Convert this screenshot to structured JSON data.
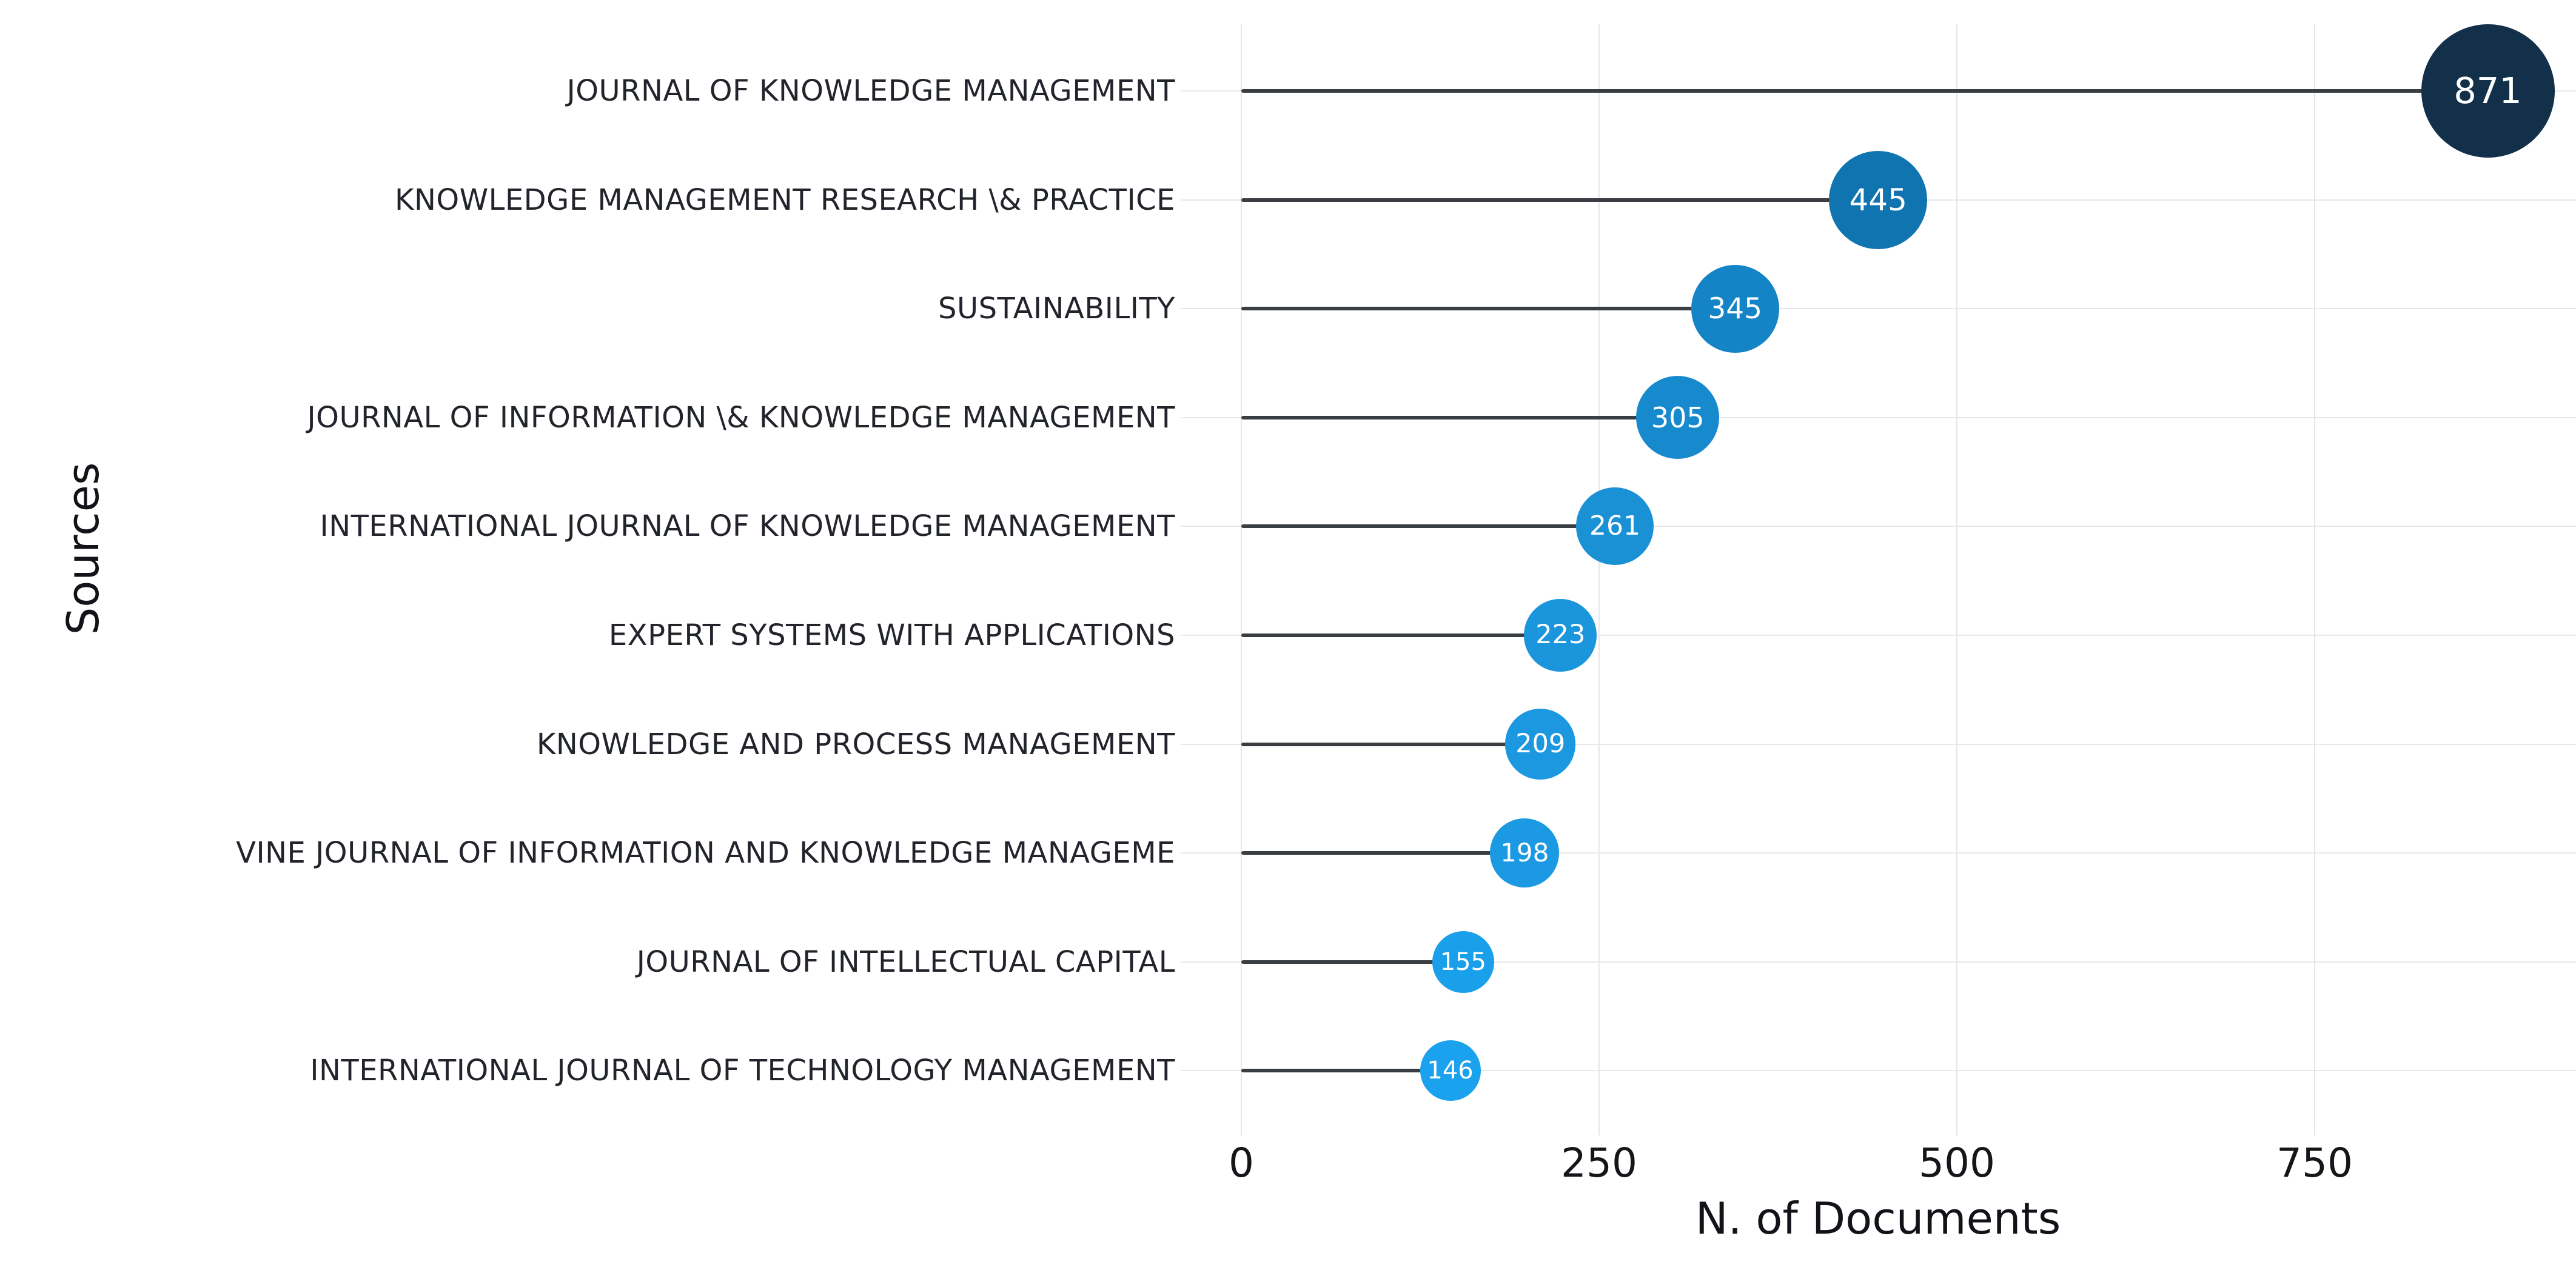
{
  "chart_data": {
    "type": "scatter",
    "variant": "horizontal-lollipop",
    "title": "",
    "xlabel": "N. of Documents",
    "ylabel": "Sources",
    "categories": [
      "JOURNAL OF KNOWLEDGE MANAGEMENT",
      "KNOWLEDGE MANAGEMENT RESEARCH \\& PRACTICE",
      "SUSTAINABILITY",
      "JOURNAL OF INFORMATION \\& KNOWLEDGE MANAGEMENT",
      "INTERNATIONAL JOURNAL OF KNOWLEDGE MANAGEMENT",
      "EXPERT SYSTEMS WITH APPLICATIONS",
      "KNOWLEDGE AND PROCESS MANAGEMENT",
      "VINE JOURNAL OF INFORMATION AND KNOWLEDGE MANAGEME",
      "JOURNAL OF INTELLECTUAL CAPITAL",
      "INTERNATIONAL JOURNAL OF TECHNOLOGY MANAGEMENT"
    ],
    "values": [
      871,
      445,
      345,
      305,
      261,
      223,
      209,
      198,
      155,
      146
    ],
    "point_colors": [
      "#13304A",
      "#0F74B0",
      "#1584C6",
      "#1789CD",
      "#1A90D5",
      "#1B95DC",
      "#1B98E0",
      "#1B9AE3",
      "#1AA0EB",
      "#1AA2EE"
    ],
    "xticks": [
      "0",
      "250",
      "500",
      "750"
    ],
    "xlim": [
      -42,
      933
    ],
    "grid": true,
    "legend": false,
    "colors": {
      "background": "#FFFFFF",
      "grid": "#E6E6EA",
      "stem": "#3A3D42",
      "label_text": "#22242B",
      "tick_text": "#15161A",
      "bubble_text": "#FFFFFF"
    }
  }
}
